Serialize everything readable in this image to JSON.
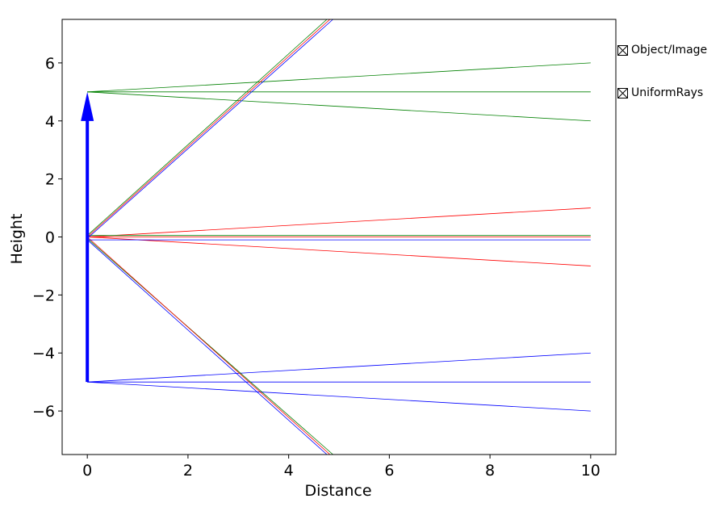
{
  "chart_data": {
    "type": "line",
    "xlabel": "Distance",
    "ylabel": "Height",
    "xlim": [
      -0.5,
      10.5
    ],
    "ylim": [
      -7.5,
      7.5
    ],
    "xticks": [
      0,
      2,
      4,
      6,
      8,
      10
    ],
    "yticks": [
      -6,
      -4,
      -2,
      0,
      2,
      4,
      6
    ],
    "object": {
      "x": 0,
      "y_start": -5,
      "y_end": 5,
      "color": "#0000ff"
    },
    "ray_groups": [
      {
        "color": "#008000",
        "origin_y": 5,
        "rays": [
          {
            "x": [
              0,
              10
            ],
            "y": [
              5,
              6
            ]
          },
          {
            "x": [
              0,
              10
            ],
            "y": [
              5,
              5
            ]
          },
          {
            "x": [
              0,
              10
            ],
            "y": [
              5,
              4
            ]
          }
        ]
      },
      {
        "color": "#ff0000",
        "origin_y": 0,
        "rays": [
          {
            "x": [
              0,
              10
            ],
            "y": [
              0,
              1
            ]
          },
          {
            "x": [
              0,
              10
            ],
            "y": [
              0,
              0
            ]
          },
          {
            "x": [
              0,
              10
            ],
            "y": [
              0,
              -1
            ]
          }
        ]
      },
      {
        "color": "#0000ff",
        "origin_y": -5,
        "rays": [
          {
            "x": [
              0,
              10
            ],
            "y": [
              -5,
              -4
            ]
          },
          {
            "x": [
              0,
              10
            ],
            "y": [
              -5,
              -5
            ]
          },
          {
            "x": [
              0,
              10
            ],
            "y": [
              -5,
              -6
            ]
          }
        ]
      },
      {
        "color": "#008000",
        "origin_y": 0,
        "rays": [
          {
            "x": [
              0,
              4.76
            ],
            "y": [
              0.05,
              7.5
            ]
          },
          {
            "x": [
              0,
              10
            ],
            "y": [
              0.05,
              0.05
            ]
          },
          {
            "x": [
              0,
              4.88
            ],
            "y": [
              -0.05,
              -7.5
            ]
          }
        ]
      },
      {
        "color": "#ff0000",
        "origin_y": 0,
        "rays": [
          {
            "x": [
              0,
              4.82
            ],
            "y": [
              0,
              7.5
            ]
          },
          {
            "x": [
              0,
              4.82
            ],
            "y": [
              0,
              -7.5
            ]
          }
        ]
      },
      {
        "color": "#0000ff",
        "origin_y": 0,
        "rays": [
          {
            "x": [
              0,
              4.88
            ],
            "y": [
              -0.05,
              7.5
            ]
          },
          {
            "x": [
              0,
              10
            ],
            "y": [
              -0.1,
              -0.1
            ]
          },
          {
            "x": [
              0,
              4.76
            ],
            "y": [
              -0.1,
              -7.5
            ]
          }
        ]
      }
    ]
  },
  "legend": {
    "items": [
      {
        "label": "Object/Image"
      },
      {
        "label": "UniformRays"
      }
    ]
  }
}
